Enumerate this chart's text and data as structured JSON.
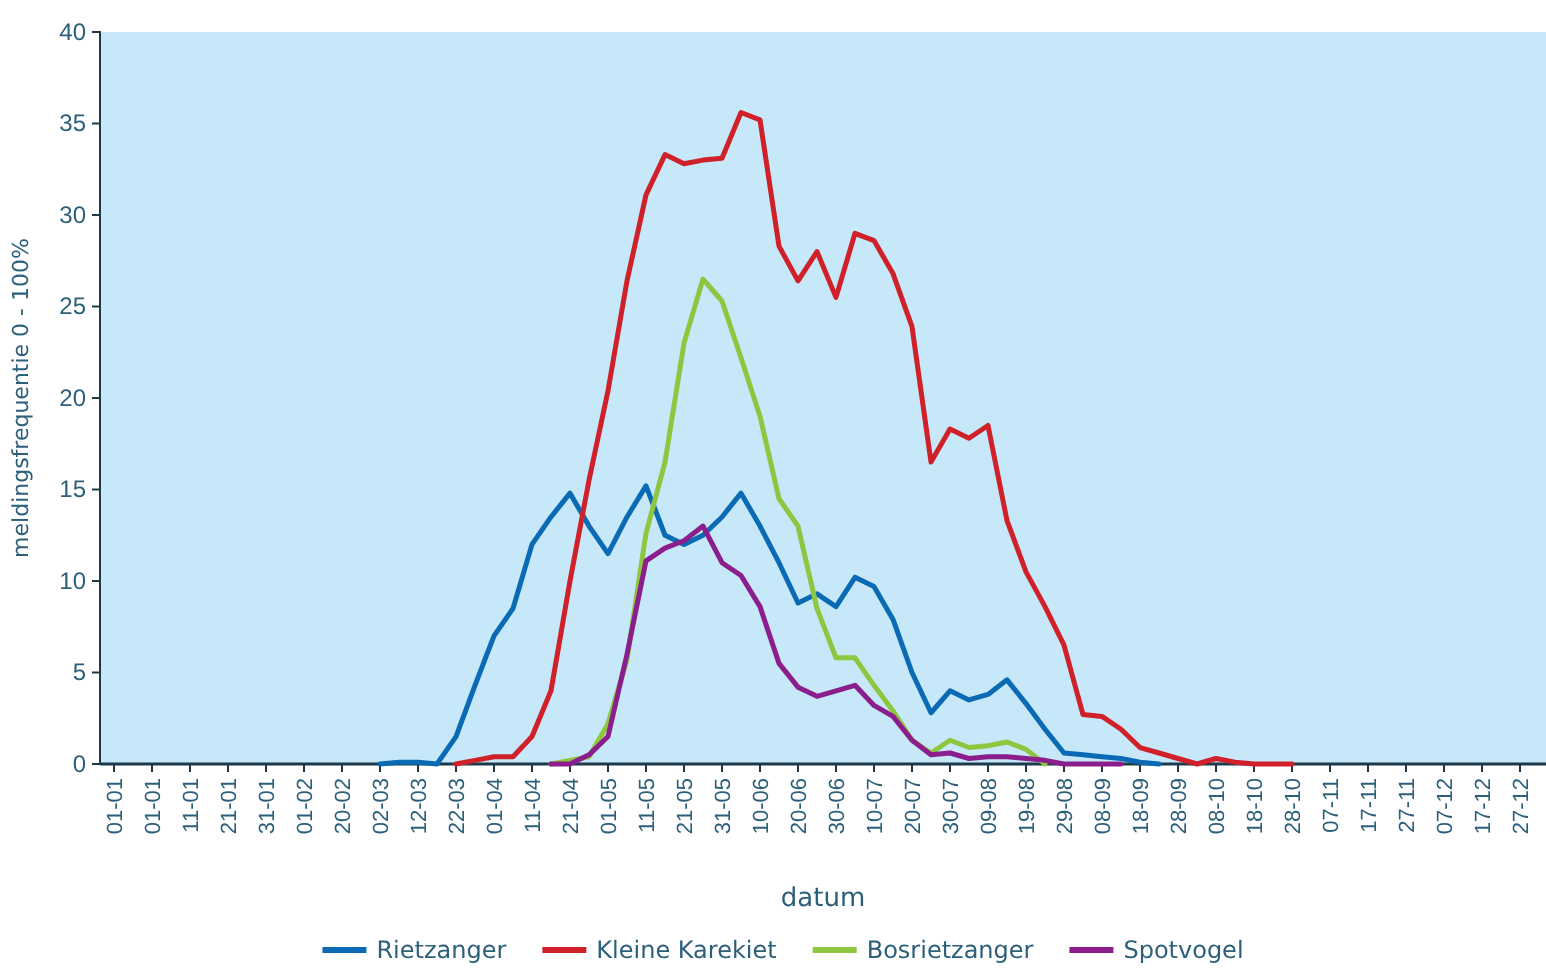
{
  "chart_data": {
    "type": "line",
    "xlabel": "datum",
    "ylabel": "meldingsfrequentie 0 - 100%",
    "categories": [
      "01-01",
      null,
      "01-01",
      null,
      "11-01",
      null,
      "21-01",
      null,
      "31-01",
      null,
      "01-02",
      null,
      "20-02",
      null,
      "02-03",
      null,
      "12-03",
      null,
      "22-03",
      null,
      "01-04",
      null,
      "11-04",
      null,
      "21-04",
      null,
      "01-05",
      null,
      "11-05",
      null,
      "21-05",
      null,
      "31-05",
      null,
      "10-06",
      null,
      "20-06",
      null,
      "30-06",
      null,
      "10-07",
      null,
      "20-07",
      null,
      "30-07",
      null,
      "09-08",
      null,
      "19-08",
      null,
      "29-08",
      null,
      "08-09",
      null,
      "18-09",
      null,
      "28-09",
      null,
      "08-10",
      null,
      "18-10",
      null,
      "28-10",
      null,
      "07-11",
      null,
      "17-11",
      null,
      "27-11",
      null,
      "07-12",
      null,
      "17-12",
      null,
      "27-12"
    ],
    "ylim": [
      0,
      40
    ],
    "yticks": [
      0,
      5,
      10,
      15,
      20,
      25,
      30,
      35,
      40
    ],
    "grid": false,
    "legend": "bottom",
    "marker": "none",
    "line_style": "solid",
    "series": [
      {
        "name": "Rietzanger",
        "color": "#0a6ab3",
        "values": [
          null,
          null,
          null,
          null,
          null,
          null,
          null,
          null,
          null,
          null,
          null,
          null,
          null,
          null,
          0,
          0.1,
          0.1,
          0,
          1.5,
          4.3,
          7,
          8.5,
          12,
          13.5,
          14.8,
          13,
          11.5,
          13.5,
          15.2,
          12.5,
          12,
          12.5,
          13.5,
          14.8,
          13,
          11,
          8.8,
          9.3,
          8.6,
          10.2,
          9.7,
          7.9,
          5,
          2.8,
          4,
          3.5,
          3.8,
          4.6,
          3.3,
          1.9,
          0.6,
          0.5,
          0.4,
          0.3,
          0.1,
          0,
          null,
          null,
          null,
          null,
          null,
          null,
          null,
          null,
          null,
          null,
          null,
          null,
          null,
          null,
          null,
          null,
          null,
          null,
          null
        ]
      },
      {
        "name": "Kleine Karekiet",
        "color": "#d0202a",
        "values": [
          null,
          null,
          null,
          null,
          null,
          null,
          null,
          null,
          null,
          null,
          null,
          null,
          null,
          null,
          null,
          null,
          null,
          null,
          0,
          0.2,
          0.4,
          0.4,
          1.5,
          4,
          10,
          15.5,
          20.4,
          26.4,
          31.1,
          33.3,
          32.8,
          33,
          33.1,
          35.6,
          35.2,
          28.3,
          26.4,
          28,
          25.5,
          29,
          28.6,
          26.8,
          23.9,
          16.5,
          18.3,
          17.8,
          18.5,
          13.3,
          10.5,
          8.6,
          6.5,
          2.7,
          2.6,
          1.9,
          0.9,
          0.6,
          0.3,
          0,
          0.3,
          0.1,
          0,
          0,
          0,
          null,
          null,
          null,
          null,
          null,
          null,
          null,
          null,
          null,
          null,
          null,
          null
        ]
      },
      {
        "name": "Bosrietzanger",
        "color": "#8dc63f",
        "values": [
          null,
          null,
          null,
          null,
          null,
          null,
          null,
          null,
          null,
          null,
          null,
          null,
          null,
          null,
          null,
          null,
          null,
          null,
          null,
          null,
          null,
          null,
          null,
          0,
          0.2,
          0.4,
          2.2,
          5.7,
          12.6,
          16.5,
          23,
          26.5,
          25.3,
          22.2,
          19,
          14.5,
          13,
          8.5,
          5.8,
          5.8,
          4.3,
          2.9,
          1.3,
          0.6,
          1.3,
          0.9,
          1,
          1.2,
          0.8,
          0,
          null,
          null,
          null,
          null,
          null,
          null,
          null,
          null,
          null,
          null,
          null,
          null,
          null,
          null,
          null,
          null,
          null,
          null,
          null,
          null,
          null,
          null,
          null,
          null,
          null
        ]
      },
      {
        "name": "Spotvogel",
        "color": "#8b1e8c",
        "values": [
          null,
          null,
          null,
          null,
          null,
          null,
          null,
          null,
          null,
          null,
          null,
          null,
          null,
          null,
          null,
          null,
          null,
          null,
          null,
          null,
          null,
          null,
          null,
          0,
          0,
          0.5,
          1.5,
          6,
          11.1,
          11.8,
          12.2,
          13,
          11,
          10.3,
          8.6,
          5.5,
          4.2,
          3.7,
          4,
          4.3,
          3.2,
          2.6,
          1.3,
          0.5,
          0.6,
          0.3,
          0.4,
          0.4,
          0.3,
          0.2,
          0,
          0,
          0,
          0,
          null,
          null,
          null,
          null,
          null,
          null,
          null,
          null,
          null,
          null,
          null,
          null,
          null,
          null,
          null,
          null,
          null,
          null,
          null,
          null,
          null
        ]
      }
    ]
  }
}
